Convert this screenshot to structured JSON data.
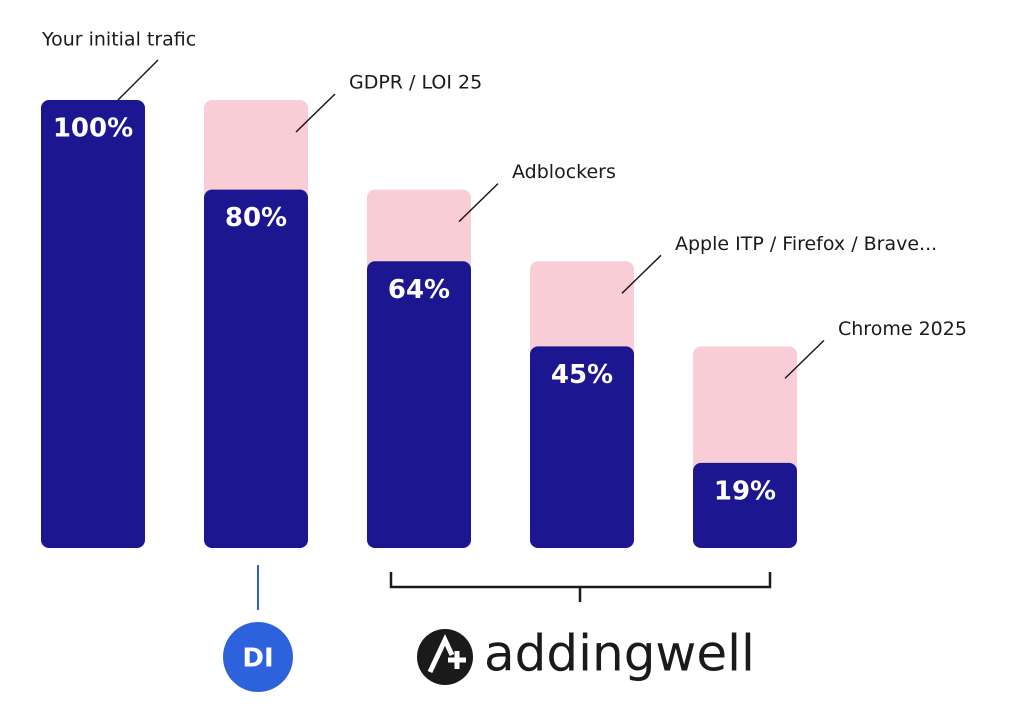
{
  "chart_data": {
    "type": "bar",
    "categories": [
      "Your initial trafic",
      "GDPR / LOI 25",
      "Adblockers",
      "Apple ITP / Firefox / Brave...",
      "Chrome 2025"
    ],
    "series": [
      {
        "color": "#1c1790",
        "values": [
          100,
          80,
          64,
          45,
          19
        ],
        "value_labels": [
          "100%",
          "80%",
          "64%",
          "45%",
          "19%"
        ]
      },
      {
        "color": "#f9cdd5",
        "values": [
          null,
          20,
          16,
          19,
          26
        ]
      }
    ],
    "ylim": [
      0,
      100
    ],
    "brands": {
      "left": "DI",
      "right": "addingwell"
    }
  }
}
